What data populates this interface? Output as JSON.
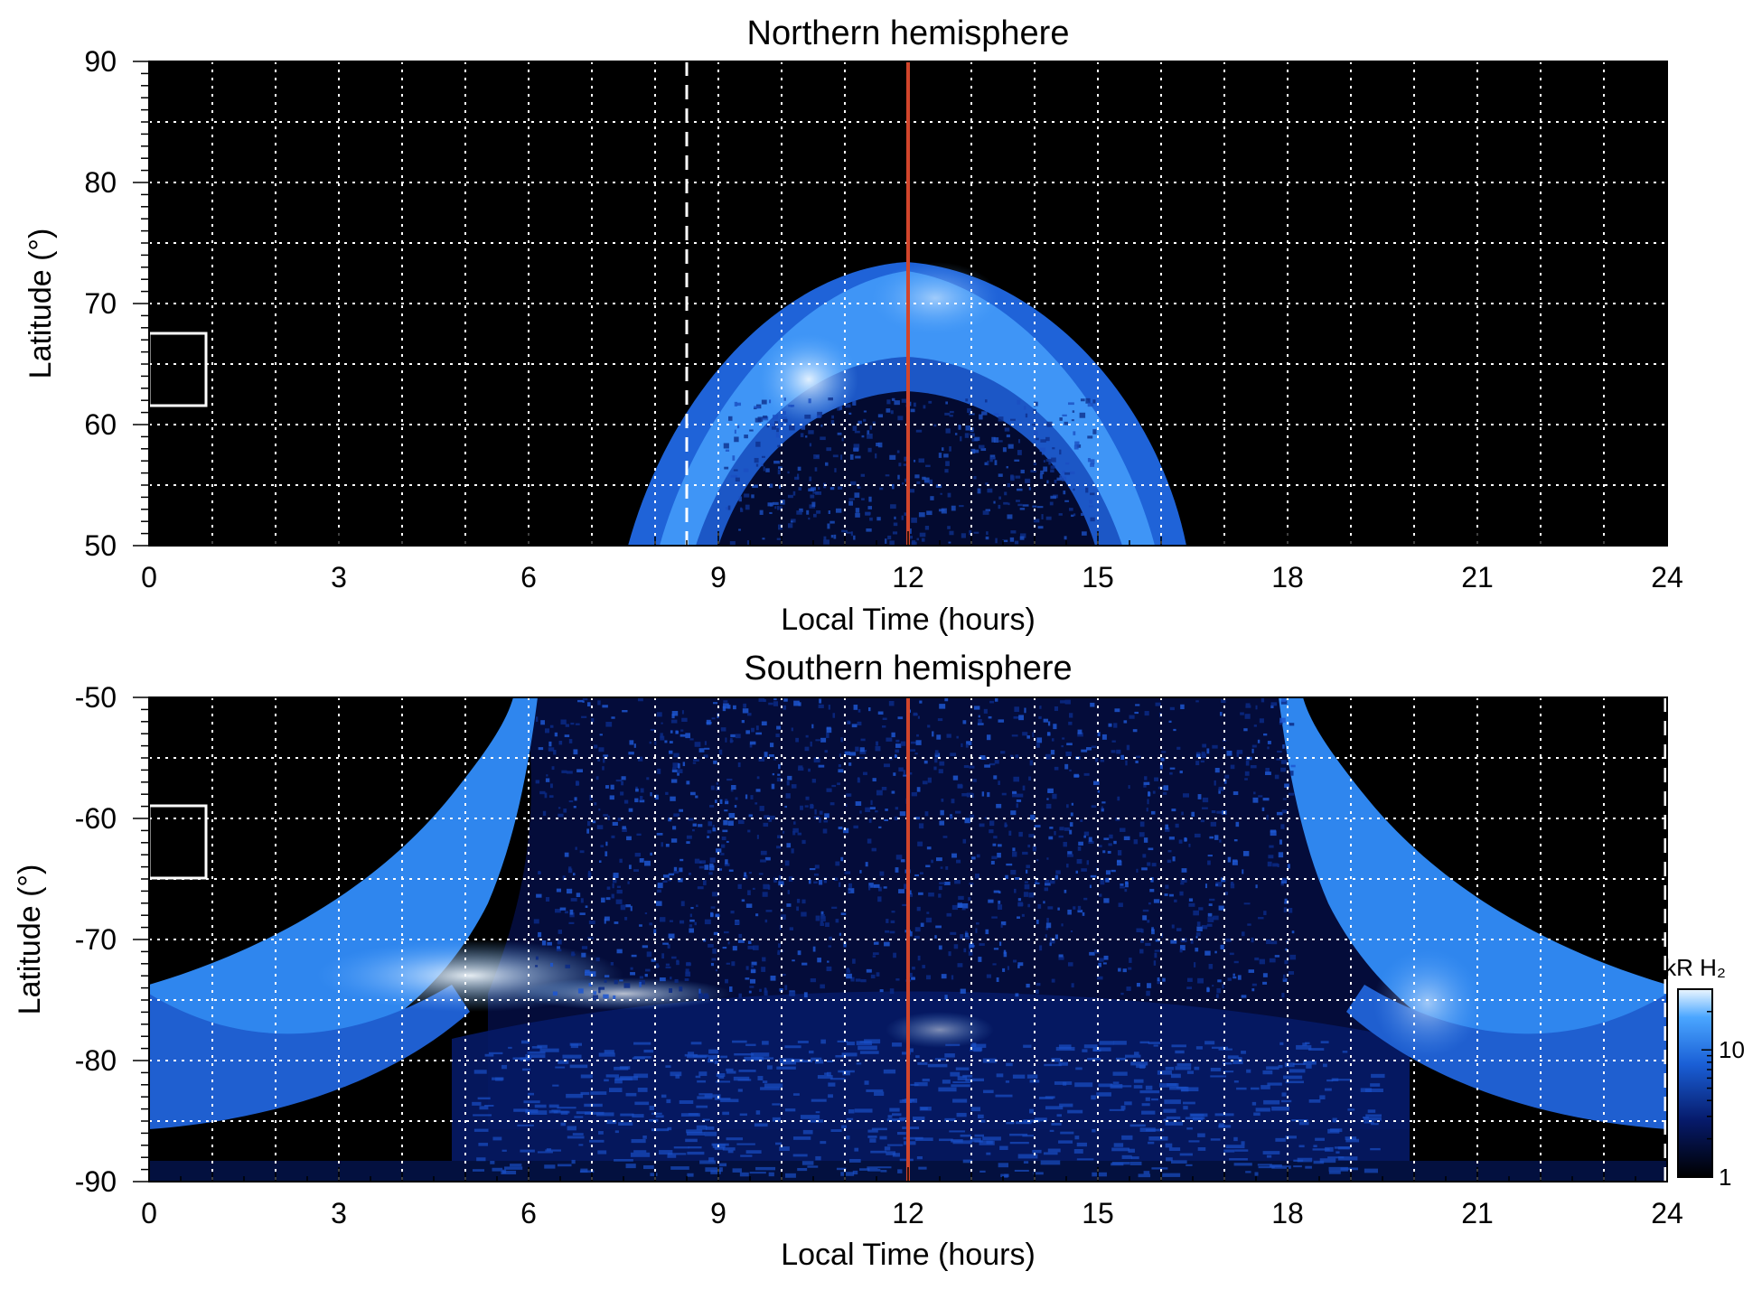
{
  "chart_data": [
    {
      "type": "heatmap",
      "title": "Northern hemisphere",
      "xlabel": "Local Time (hours)",
      "ylabel": "Latitude (°)",
      "xlim": [
        0,
        24
      ],
      "ylim": [
        50,
        90
      ],
      "xticks": [
        "0",
        "3",
        "6",
        "9",
        "12",
        "15",
        "18",
        "21",
        "24"
      ],
      "yticks": [
        "50",
        "60",
        "70",
        "80",
        "90"
      ],
      "grid": true,
      "oval": {
        "center_lt": 12,
        "inner_halfwidth_lt": 3.3,
        "outer_halfwidth_lt": 4.3,
        "inner_top_lat": 62,
        "outer_top_lat": 73.5,
        "bright_spot": [
          10.5,
          62.5
        ]
      },
      "reference_lines": [
        {
          "x": 12,
          "style": "solid",
          "color": "#d2452b"
        },
        {
          "x": 8.5,
          "lat_range": [
            50,
            90
          ],
          "style": "dashed",
          "color": "#ffffff"
        }
      ],
      "box": {
        "x": [
          0,
          0.9
        ],
        "y": [
          61.5,
          67.5
        ]
      }
    },
    {
      "type": "heatmap",
      "title": "Southern hemisphere",
      "xlabel": "Local Time (hours)",
      "ylabel": "Latitude (°)",
      "xlim": [
        0,
        24
      ],
      "ylim": [
        -90,
        -50
      ],
      "xticks": [
        "0",
        "3",
        "6",
        "9",
        "12",
        "15",
        "18",
        "21",
        "24"
      ],
      "yticks": [
        "-90",
        "-80",
        "-70",
        "-60",
        "-50"
      ],
      "grid": true,
      "reference_lines": [
        {
          "x": 12,
          "style": "solid",
          "color": "#d2452b"
        },
        {
          "x": 24,
          "style": "dashed",
          "color": "#ffffff"
        }
      ],
      "box": {
        "x": [
          0,
          0.9
        ],
        "y": [
          -65,
          -59
        ]
      },
      "colorbar": {
        "label": "kR H₂",
        "ticks": [
          "1",
          "10"
        ],
        "scale": "log",
        "range": [
          1,
          30
        ]
      }
    }
  ]
}
